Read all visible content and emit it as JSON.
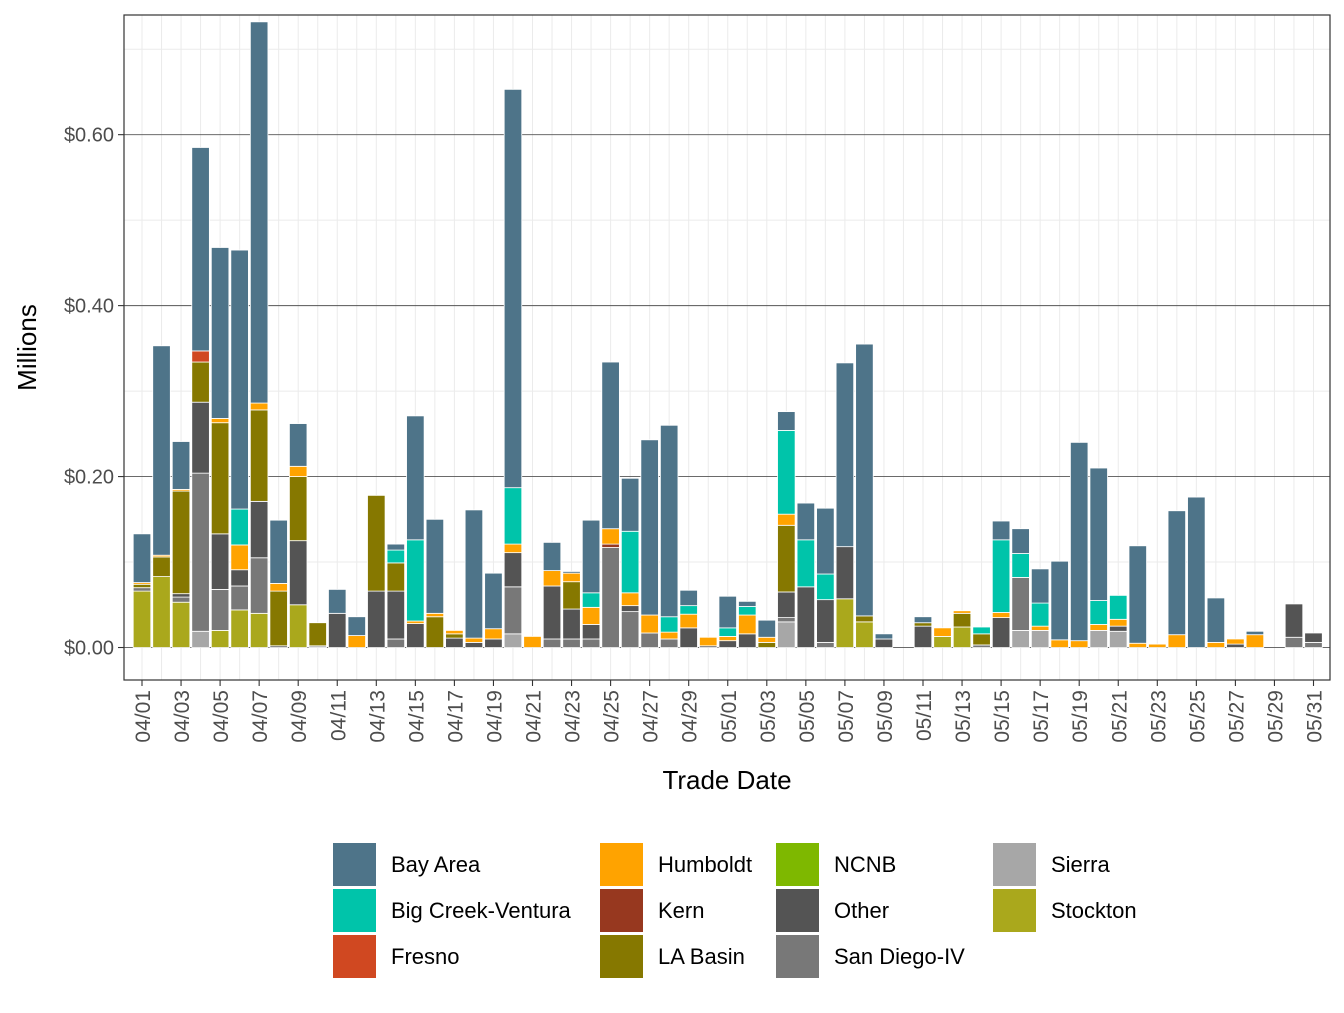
{
  "chart_data": {
    "type": "bar",
    "stacked": true,
    "title": "",
    "xlabel": "Trade Date",
    "ylabel": "Millions",
    "ylim": [
      -0.038,
      0.74
    ],
    "y_ticks": [
      {
        "value": 0.0,
        "label": "$0.00"
      },
      {
        "value": 0.2,
        "label": "$0.20"
      },
      {
        "value": 0.4,
        "label": "$0.40"
      },
      {
        "value": 0.6,
        "label": "$0.60"
      }
    ],
    "x_tick_labels": [
      "04/01",
      "04/03",
      "04/05",
      "04/07",
      "04/09",
      "04/11",
      "04/13",
      "04/15",
      "04/17",
      "04/19",
      "04/21",
      "04/23",
      "04/25",
      "04/27",
      "04/29",
      "05/01",
      "05/03",
      "05/05",
      "05/07",
      "05/09",
      "05/11",
      "05/13",
      "05/15",
      "05/17",
      "05/19",
      "05/21",
      "05/23",
      "05/25",
      "05/27",
      "05/29",
      "05/31"
    ],
    "grid": true,
    "legend_position": "bottom",
    "series_order": [
      "Sierra",
      "Stockton",
      "San Diego-IV",
      "Other",
      "NCNB",
      "LA Basin",
      "Kern",
      "Humboldt",
      "Fresno",
      "Big Creek-Ventura",
      "Bay Area"
    ],
    "series": [
      {
        "name": "Bay Area",
        "color": "#4e7489"
      },
      {
        "name": "Big Creek-Ventura",
        "color": "#00c4aa"
      },
      {
        "name": "Fresno",
        "color": "#d04821"
      },
      {
        "name": "Humboldt",
        "color": "#ffa300"
      },
      {
        "name": "Kern",
        "color": "#97381f"
      },
      {
        "name": "LA Basin",
        "color": "#867800"
      },
      {
        "name": "NCNB",
        "color": "#7eb800"
      },
      {
        "name": "Other",
        "color": "#545454"
      },
      {
        "name": "San Diego-IV",
        "color": "#787878"
      },
      {
        "name": "Sierra",
        "color": "#a7a7a7"
      },
      {
        "name": "Stockton",
        "color": "#aaa81c"
      }
    ],
    "bars": [
      {
        "date": "04/01",
        "values": {
          "Stockton": 0.066,
          "San Diego-IV": 0.004,
          "LA Basin": 0.004,
          "Humboldt": 0.002,
          "Bay Area": 0.057
        }
      },
      {
        "date": "04/02",
        "values": {
          "Stockton": 0.083,
          "LA Basin": 0.023,
          "Humboldt": 0.002,
          "Bay Area": 0.245
        }
      },
      {
        "date": "04/03",
        "values": {
          "Stockton": 0.053,
          "San Diego-IV": 0.006,
          "Other": 0.004,
          "LA Basin": 0.12,
          "Humboldt": 0.002,
          "Bay Area": 0.056
        }
      },
      {
        "date": "04/04",
        "values": {
          "Sierra": 0.019,
          "San Diego-IV": 0.185,
          "Other": 0.083,
          "LA Basin": 0.047,
          "Fresno": 0.013,
          "Bay Area": 0.238
        }
      },
      {
        "date": "04/05",
        "values": {
          "Stockton": 0.02,
          "San Diego-IV": 0.048,
          "Other": 0.065,
          "LA Basin": 0.13,
          "Humboldt": 0.005,
          "Bay Area": 0.2
        }
      },
      {
        "date": "04/06",
        "values": {
          "Stockton": 0.044,
          "San Diego-IV": 0.028,
          "Other": 0.019,
          "Humboldt": 0.029,
          "Big Creek-Ventura": 0.042,
          "Bay Area": 0.303
        }
      },
      {
        "date": "04/07",
        "values": {
          "Stockton": 0.04,
          "San Diego-IV": 0.065,
          "Other": 0.066,
          "LA Basin": 0.107,
          "Humboldt": 0.008,
          "Bay Area": 0.446
        }
      },
      {
        "date": "04/08",
        "values": {
          "LA Basin": 0.064,
          "Other": 0.002,
          "Humboldt": 0.009,
          "Bay Area": 0.074
        }
      },
      {
        "date": "04/09",
        "values": {
          "Stockton": 0.05,
          "Other": 0.075,
          "LA Basin": 0.075,
          "Humboldt": 0.012,
          "Bay Area": 0.05
        }
      },
      {
        "date": "04/10",
        "values": {
          "Sierra": 0.002,
          "LA Basin": 0.027
        }
      },
      {
        "date": "04/11",
        "values": {
          "Other": 0.04,
          "Bay Area": 0.028
        }
      },
      {
        "date": "04/12",
        "values": {
          "Humboldt": 0.014,
          "Bay Area": 0.022
        }
      },
      {
        "date": "04/13",
        "values": {
          "Other": 0.066,
          "LA Basin": 0.112
        }
      },
      {
        "date": "04/14",
        "values": {
          "San Diego-IV": 0.01,
          "Other": 0.056,
          "LA Basin": 0.033,
          "Big Creek-Ventura": 0.015,
          "Bay Area": 0.007
        }
      },
      {
        "date": "04/15",
        "values": {
          "Other": 0.028,
          "Humboldt": 0.003,
          "Big Creek-Ventura": 0.095,
          "Bay Area": 0.145
        }
      },
      {
        "date": "04/16",
        "values": {
          "LA Basin": 0.036,
          "Humboldt": 0.004,
          "Bay Area": 0.11
        }
      },
      {
        "date": "04/17",
        "values": {
          "Other": 0.011,
          "LA Basin": 0.005,
          "Humboldt": 0.004
        }
      },
      {
        "date": "04/18",
        "values": {
          "Other": 0.006,
          "Humboldt": 0.005,
          "Bay Area": 0.15
        }
      },
      {
        "date": "04/19",
        "values": {
          "Other": 0.01,
          "Humboldt": 0.012,
          "Bay Area": 0.065
        }
      },
      {
        "date": "04/20",
        "values": {
          "Sierra": 0.016,
          "San Diego-IV": 0.055,
          "Other": 0.04,
          "Humboldt": 0.01,
          "Big Creek-Ventura": 0.066,
          "Bay Area": 0.466
        }
      },
      {
        "date": "04/21",
        "values": {
          "Humboldt": 0.013
        }
      },
      {
        "date": "04/22",
        "values": {
          "San Diego-IV": 0.01,
          "Other": 0.062,
          "Humboldt": 0.018,
          "Bay Area": 0.033
        }
      },
      {
        "date": "04/23",
        "values": {
          "San Diego-IV": 0.01,
          "Other": 0.035,
          "LA Basin": 0.032,
          "Humboldt": 0.01,
          "Bay Area": 0.002
        }
      },
      {
        "date": "04/24",
        "values": {
          "San Diego-IV": 0.01,
          "Other": 0.017,
          "Humboldt": 0.02,
          "Big Creek-Ventura": 0.017,
          "Bay Area": 0.085
        }
      },
      {
        "date": "04/25",
        "values": {
          "San Diego-IV": 0.117,
          "Humboldt": 0.018,
          "Kern": 0.004,
          "Bay Area": 0.195
        }
      },
      {
        "date": "04/26",
        "values": {
          "San Diego-IV": 0.042,
          "Other": 0.007,
          "Humboldt": 0.015,
          "Big Creek-Ventura": 0.072,
          "Bay Area": 0.062
        }
      },
      {
        "date": "04/27",
        "values": {
          "San Diego-IV": 0.017,
          "Humboldt": 0.021,
          "Bay Area": 0.205
        }
      },
      {
        "date": "04/28",
        "values": {
          "San Diego-IV": 0.01,
          "Humboldt": 0.008,
          "Big Creek-Ventura": 0.018,
          "Bay Area": 0.224
        }
      },
      {
        "date": "04/29",
        "values": {
          "Other": 0.023,
          "Humboldt": 0.016,
          "Big Creek-Ventura": 0.01,
          "Bay Area": 0.018
        }
      },
      {
        "date": "04/30",
        "values": {
          "Other": 0.002,
          "Humboldt": 0.01
        }
      },
      {
        "date": "05/01",
        "values": {
          "Other": 0.008,
          "Humboldt": 0.005,
          "Big Creek-Ventura": 0.01,
          "Bay Area": 0.037
        }
      },
      {
        "date": "05/02",
        "values": {
          "Other": 0.016,
          "Humboldt": 0.022,
          "Big Creek-Ventura": 0.01,
          "Bay Area": 0.006
        }
      },
      {
        "date": "05/03",
        "values": {
          "LA Basin": 0.006,
          "Humboldt": 0.006,
          "Bay Area": 0.02
        }
      },
      {
        "date": "05/04",
        "values": {
          "Sierra": 0.03,
          "San Diego-IV": 0.005,
          "Other": 0.03,
          "LA Basin": 0.078,
          "Humboldt": 0.013,
          "Big Creek-Ventura": 0.098,
          "Bay Area": 0.022
        }
      },
      {
        "date": "05/05",
        "values": {
          "Other": 0.071,
          "Big Creek-Ventura": 0.055,
          "Bay Area": 0.043
        }
      },
      {
        "date": "05/06",
        "values": {
          "San Diego-IV": 0.006,
          "Other": 0.05,
          "Big Creek-Ventura": 0.03,
          "Bay Area": 0.077
        }
      },
      {
        "date": "05/07",
        "values": {
          "Stockton": 0.057,
          "Other": 0.061,
          "Bay Area": 0.215
        }
      },
      {
        "date": "05/08",
        "values": {
          "Stockton": 0.03,
          "LA Basin": 0.007,
          "Bay Area": 0.318
        }
      },
      {
        "date": "05/09",
        "values": {
          "Other": 0.01,
          "Bay Area": 0.006
        }
      },
      {
        "date": "05/11",
        "values": {
          "Other": 0.025,
          "LA Basin": 0.004,
          "Bay Area": 0.007
        }
      },
      {
        "date": "05/12",
        "values": {
          "Stockton": 0.013,
          "Humboldt": 0.01
        }
      },
      {
        "date": "05/13",
        "values": {
          "Stockton": 0.024,
          "LA Basin": 0.016,
          "Humboldt": 0.003
        }
      },
      {
        "date": "05/14",
        "values": {
          "San Diego-IV": 0.003,
          "LA Basin": 0.013,
          "Big Creek-Ventura": 0.008
        }
      },
      {
        "date": "05/15",
        "values": {
          "Other": 0.035,
          "Humboldt": 0.006,
          "Big Creek-Ventura": 0.085,
          "Bay Area": 0.022
        }
      },
      {
        "date": "05/16",
        "values": {
          "Sierra": 0.02,
          "San Diego-IV": 0.062,
          "Big Creek-Ventura": 0.028,
          "Bay Area": 0.029
        }
      },
      {
        "date": "05/17",
        "values": {
          "Sierra": 0.02,
          "Humboldt": 0.005,
          "Big Creek-Ventura": 0.027,
          "Bay Area": 0.04
        }
      },
      {
        "date": "05/18",
        "values": {
          "Humboldt": 0.009,
          "Bay Area": 0.092
        }
      },
      {
        "date": "05/19",
        "values": {
          "Humboldt": 0.008,
          "Bay Area": 0.232
        }
      },
      {
        "date": "05/20",
        "values": {
          "Sierra": 0.02,
          "Humboldt": 0.007,
          "Big Creek-Ventura": 0.028,
          "Bay Area": 0.155
        }
      },
      {
        "date": "05/21",
        "values": {
          "Sierra": 0.019,
          "Other": 0.006,
          "Humboldt": 0.008,
          "Big Creek-Ventura": 0.028
        }
      },
      {
        "date": "05/22",
        "values": {
          "Humboldt": 0.005,
          "Bay Area": 0.114
        }
      },
      {
        "date": "05/23",
        "values": {
          "Humboldt": 0.004
        }
      },
      {
        "date": "05/24",
        "values": {
          "Humboldt": 0.015,
          "Bay Area": 0.145
        }
      },
      {
        "date": "05/25",
        "values": {
          "Bay Area": 0.176
        }
      },
      {
        "date": "05/26",
        "values": {
          "Humboldt": 0.006,
          "Bay Area": 0.052
        }
      },
      {
        "date": "05/27",
        "values": {
          "Other": 0.004,
          "Humboldt": 0.006
        }
      },
      {
        "date": "05/28",
        "values": {
          "Humboldt": 0.015,
          "Bay Area": 0.004
        }
      },
      {
        "date": "05/30",
        "values": {
          "San Diego-IV": 0.012,
          "Other": 0.039
        }
      },
      {
        "date": "05/31",
        "values": {
          "San Diego-IV": 0.006,
          "Other": 0.011
        }
      }
    ]
  }
}
